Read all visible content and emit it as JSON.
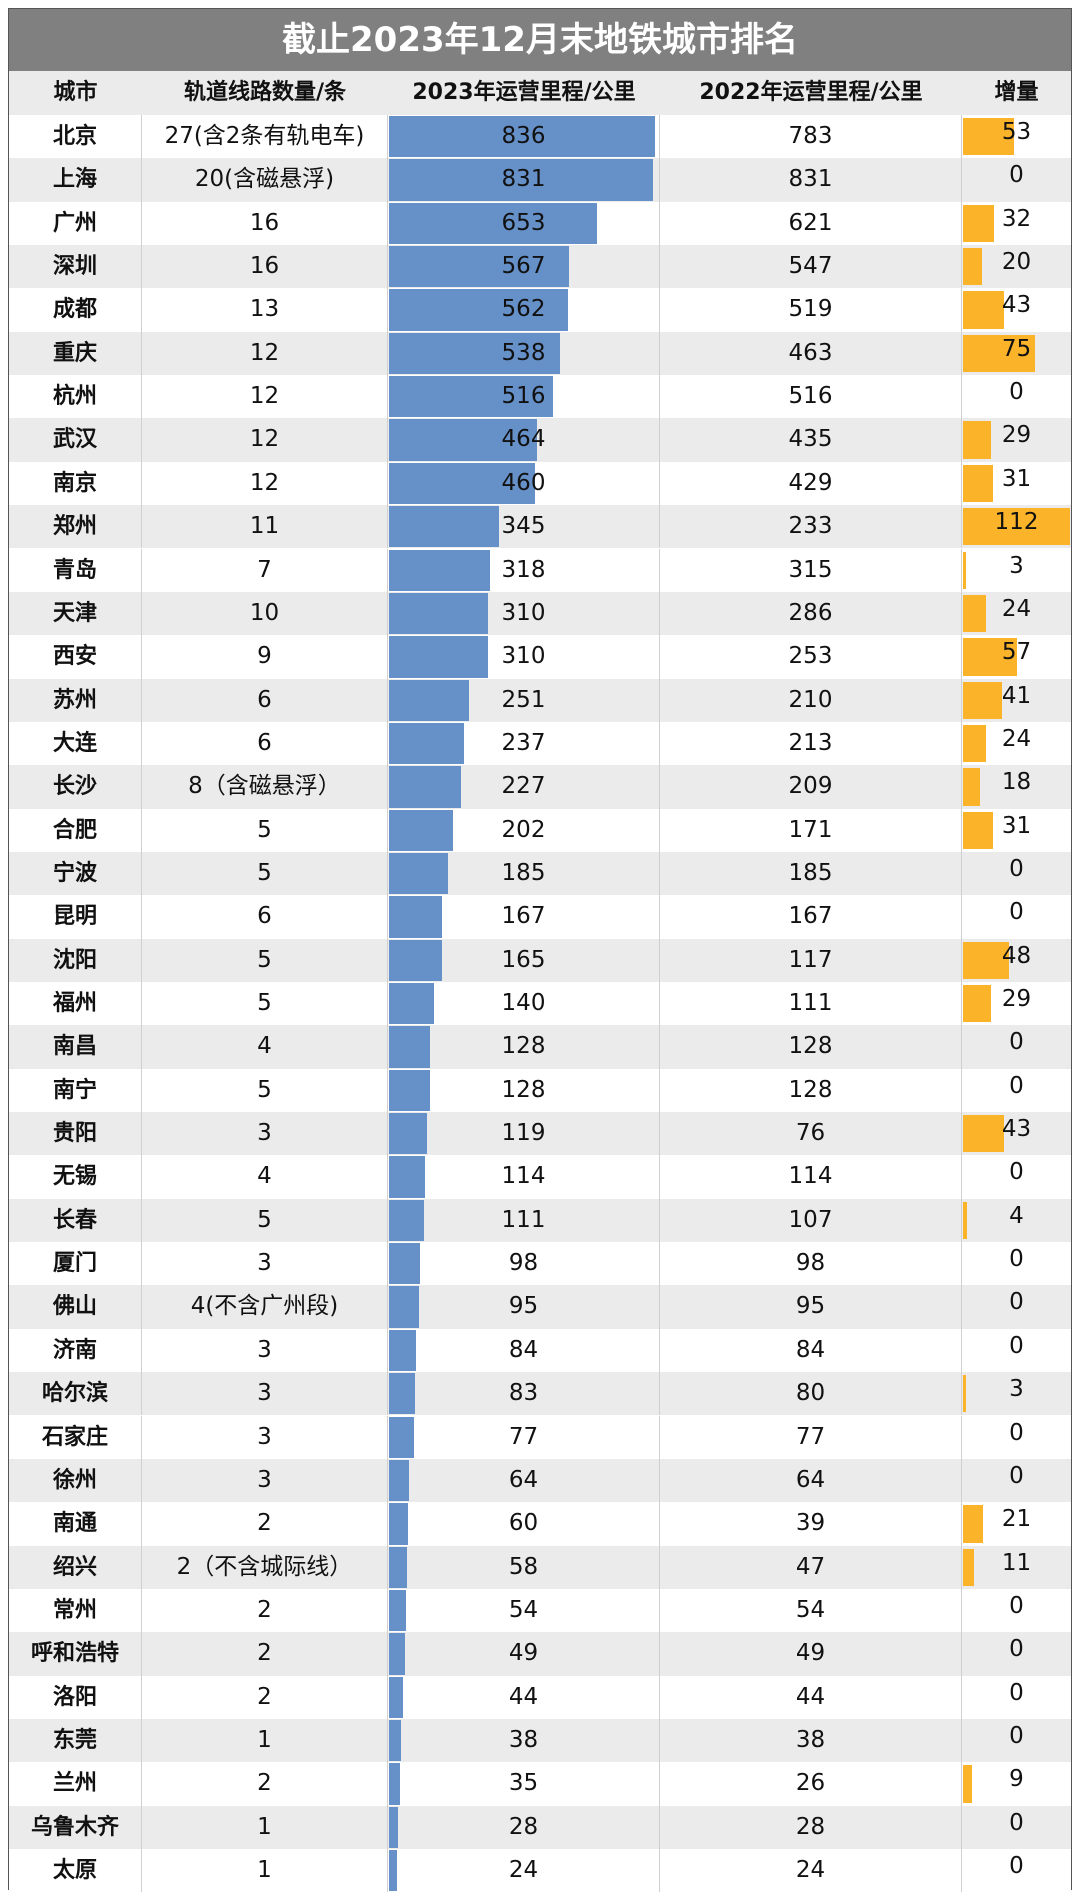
{
  "title": "截止2023年12月末地铁城市排名",
  "table": {
    "header": [
      "城市",
      "轨道线路数量/条",
      "2023年运营里程/公里",
      "2022年运营里程/公里",
      "增量"
    ],
    "rows": [
      [
        "北京",
        "27(含2条有轨电车)",
        836,
        783,
        53
      ],
      [
        "上海",
        "20(含磁悬浮)",
        831,
        831,
        0
      ],
      [
        "广州",
        16,
        653,
        621,
        32
      ],
      [
        "深圳",
        16,
        567,
        547,
        20
      ],
      [
        "成都",
        13,
        562,
        519,
        43
      ],
      [
        "重庆",
        12,
        538,
        463,
        75
      ],
      [
        "杭州",
        12,
        516,
        516,
        0
      ],
      [
        "武汉",
        12,
        464,
        435,
        29
      ],
      [
        "南京",
        12,
        460,
        429,
        31
      ],
      [
        "郑州",
        11,
        345,
        233,
        112
      ],
      [
        "青岛",
        7,
        318,
        315,
        3
      ],
      [
        "天津",
        10,
        310,
        286,
        24
      ],
      [
        "西安",
        9,
        310,
        253,
        57
      ],
      [
        "苏州",
        6,
        251,
        210,
        41
      ],
      [
        "大连",
        6,
        237,
        213,
        24
      ],
      [
        "长沙",
        "8（含磁悬浮）",
        227,
        209,
        18
      ],
      [
        "合肥",
        5,
        202,
        171,
        31
      ],
      [
        "宁波",
        5,
        185,
        185,
        0
      ],
      [
        "昆明",
        6,
        167,
        167,
        0
      ],
      [
        "沈阳",
        5,
        165,
        117,
        48
      ],
      [
        "福州",
        5,
        140,
        111,
        29
      ],
      [
        "南昌",
        4,
        128,
        128,
        0
      ],
      [
        "南宁",
        5,
        128,
        128,
        0
      ],
      [
        "贵阳",
        3,
        119,
        76,
        43
      ],
      [
        "无锡",
        4,
        114,
        114,
        0
      ],
      [
        "长春",
        5,
        111,
        107,
        4
      ],
      [
        "厦门",
        3,
        98,
        98,
        0
      ],
      [
        "佛山",
        "4(不含广州段)",
        95,
        95,
        0
      ],
      [
        "济南",
        3,
        84,
        84,
        0
      ],
      [
        "哈尔滨",
        3,
        83,
        80,
        3
      ],
      [
        "石家庄",
        3,
        77,
        77,
        0
      ],
      [
        "徐州",
        3,
        64,
        64,
        0
      ],
      [
        "南通",
        2,
        60,
        39,
        21
      ],
      [
        "绍兴",
        "2（不含城际线）",
        58,
        47,
        11
      ],
      [
        "常州",
        2,
        54,
        54,
        0
      ],
      [
        "呼和浩特",
        2,
        49,
        49,
        0
      ],
      [
        "洛阳",
        2,
        44,
        44,
        0
      ],
      [
        "东莞",
        1,
        38,
        38,
        0
      ],
      [
        "兰州",
        2,
        35,
        26,
        9
      ],
      [
        "乌鲁木齐",
        1,
        28,
        28,
        0
      ],
      [
        "太原",
        1,
        24,
        24,
        0
      ]
    ]
  }
}
